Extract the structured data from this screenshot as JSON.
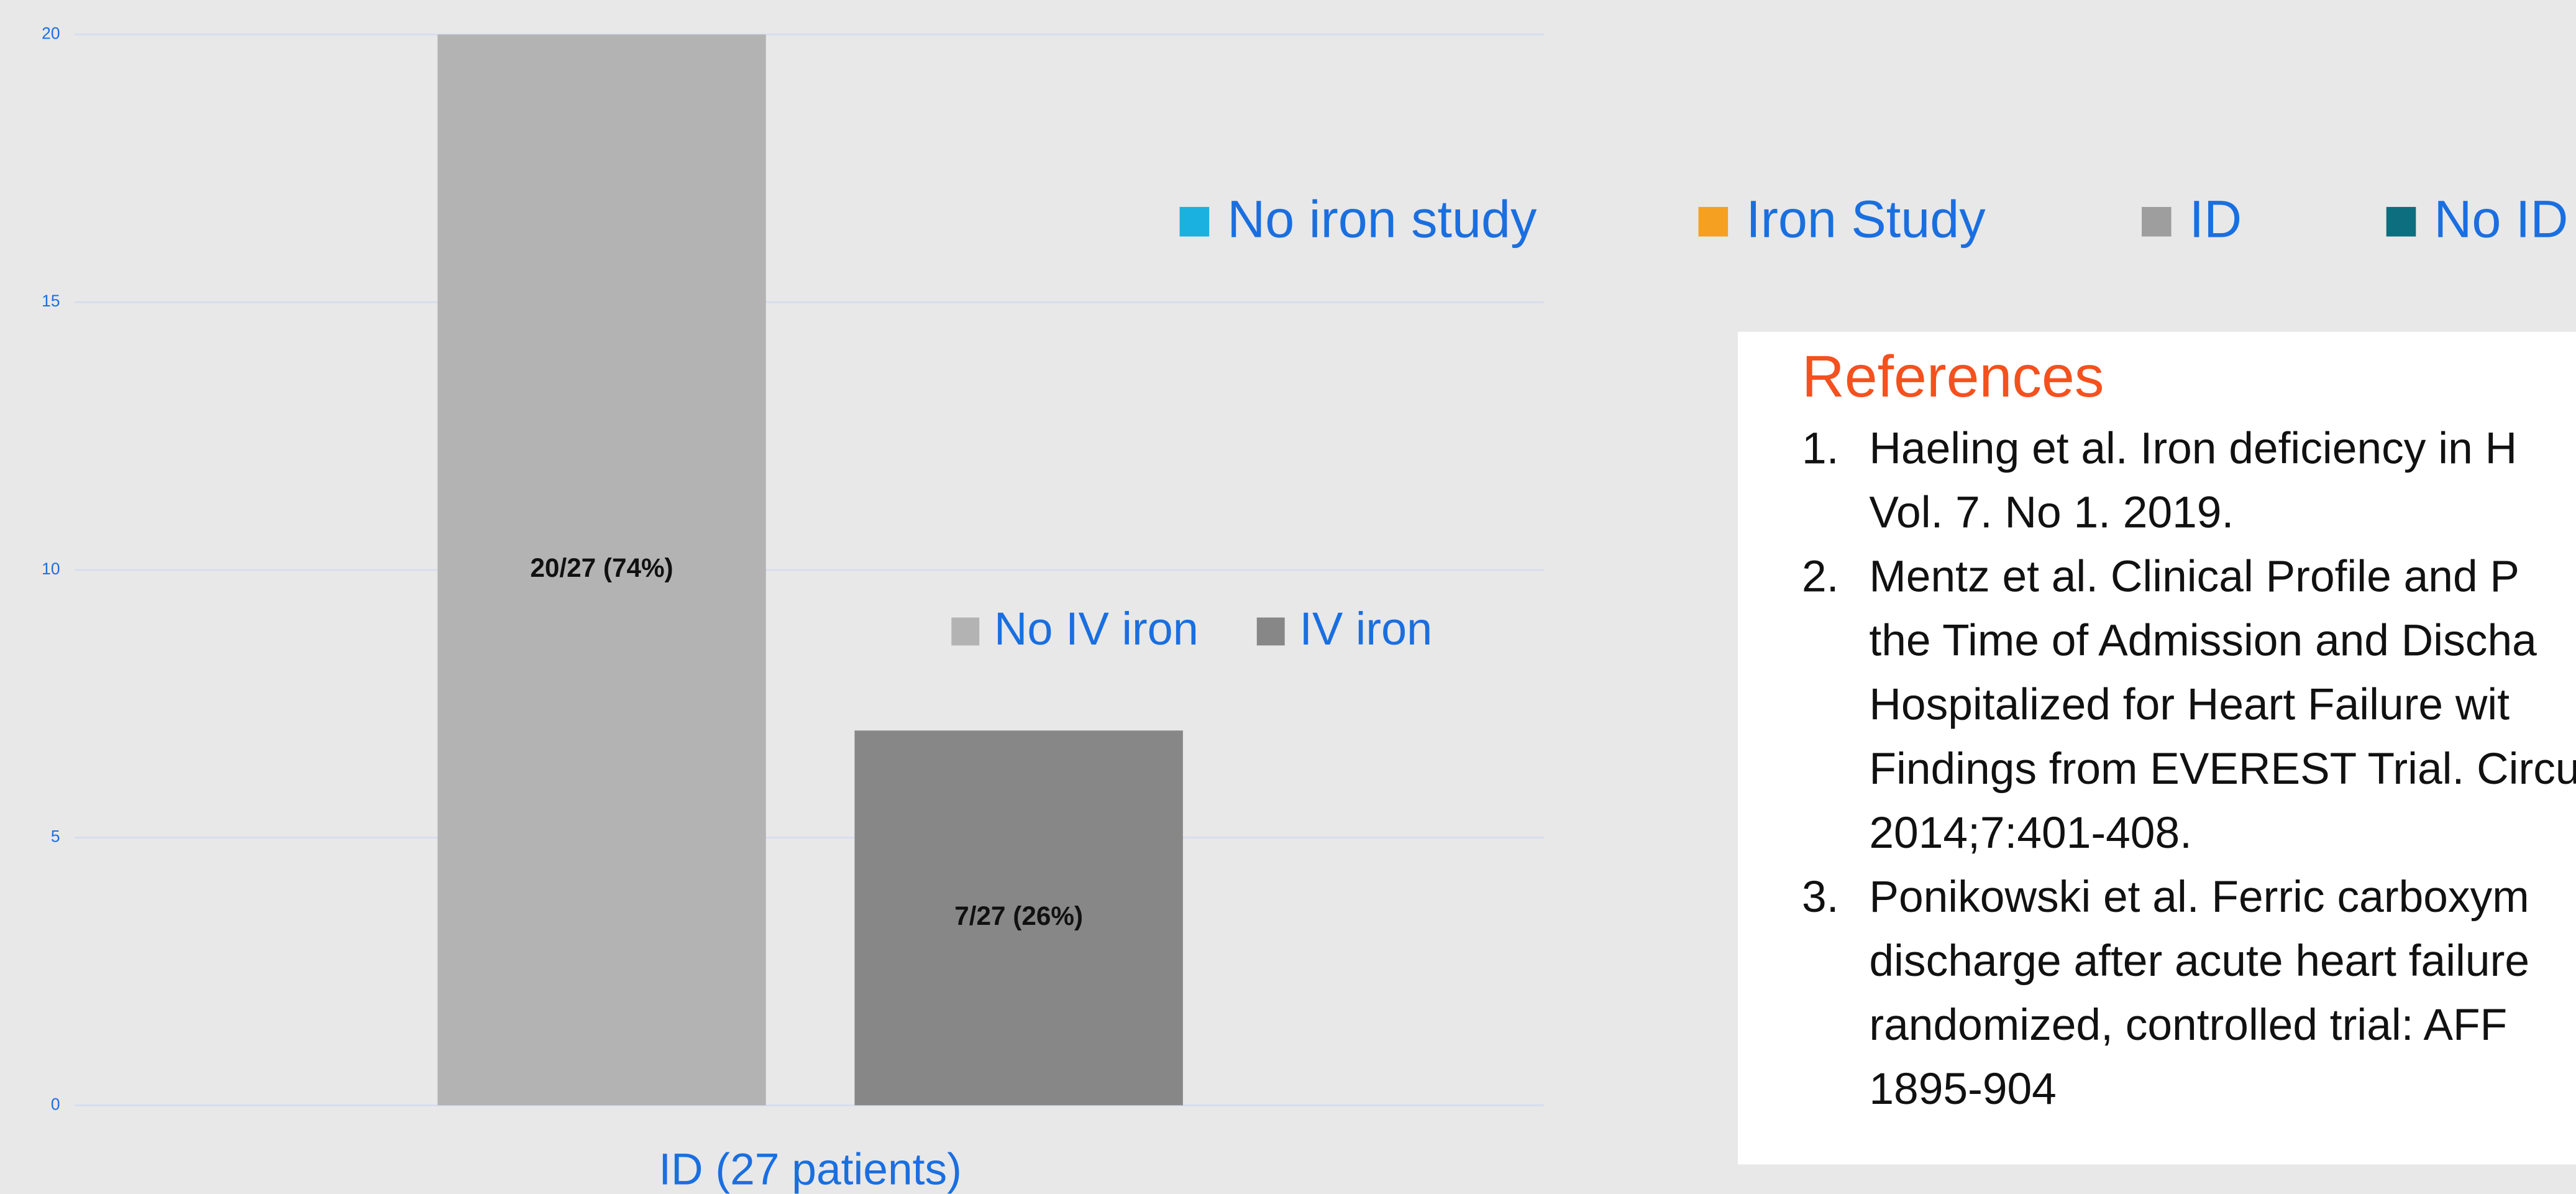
{
  "chart_data": {
    "type": "bar",
    "categories": [
      "ID (27 patients)"
    ],
    "series": [
      {
        "name": "No IV iron",
        "color": "#b3b3b3",
        "values": [
          20
        ],
        "value_labels": [
          "20/27 (74%)"
        ]
      },
      {
        "name": "IV iron",
        "color": "#878787",
        "values": [
          7
        ],
        "value_labels": [
          "7/27 (26%)"
        ]
      }
    ],
    "ylim": [
      0,
      20
    ],
    "yticks": [
      0,
      5,
      10,
      15,
      20
    ],
    "grid": true
  },
  "legend2": [
    {
      "name": "No iron study",
      "color": "#1ab0e0"
    },
    {
      "name": "Iron Study",
      "color": "#f5a020"
    },
    {
      "name": "ID",
      "color": "#9e9e9e"
    },
    {
      "name": "No ID",
      "color": "#0d6e80"
    }
  ],
  "references": {
    "title": "References",
    "items": [
      {
        "number": "1.",
        "lines": [
          "Haeling et al. Iron deficiency in H",
          "Vol. 7. No 1. 2019."
        ]
      },
      {
        "number": "2.",
        "lines": [
          "Mentz et al. Clinical Profile and P",
          "the Time of Admission and Discha",
          "Hospitalized for Heart Failure wit",
          "Findings from EVEREST Trial. Circu",
          "2014;7:401-408."
        ]
      },
      {
        "number": "3.",
        "lines": [
          "Ponikowski et al. Ferric carboxym",
          "discharge after acute heart failure",
          "randomized, controlled trial: AFF",
          "1895-904"
        ]
      }
    ]
  }
}
